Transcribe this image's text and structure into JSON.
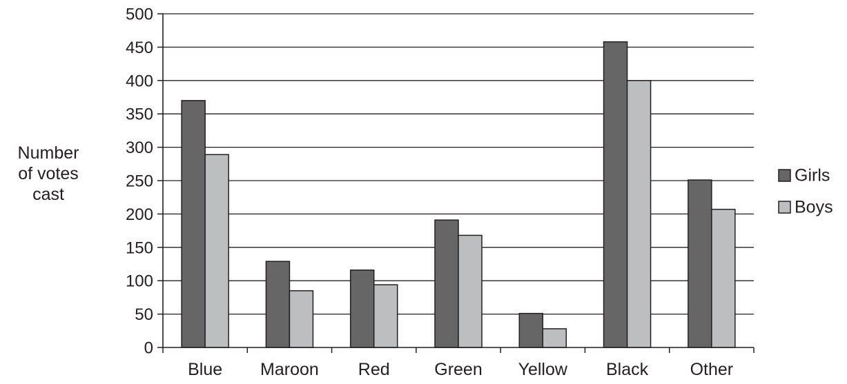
{
  "chart_data": {
    "type": "bar",
    "title": "",
    "xlabel": "",
    "ylabel_lines": [
      "Number",
      "of votes",
      "cast"
    ],
    "categories": [
      "Blue",
      "Maroon",
      "Red",
      "Green",
      "Yellow",
      "Black",
      "Other"
    ],
    "series": [
      {
        "name": "Girls",
        "values": [
          370,
          129,
          116,
          191,
          51,
          458,
          251
        ],
        "color": "#666666"
      },
      {
        "name": "Boys",
        "values": [
          289,
          85,
          94,
          168,
          28,
          400,
          207
        ],
        "color": "#bcbec0"
      }
    ],
    "ylim": [
      0,
      500
    ],
    "yticks": [
      0,
      50,
      100,
      150,
      200,
      250,
      300,
      350,
      400,
      450,
      500
    ],
    "grid": true,
    "legend_position": "right",
    "colors": {
      "axis": "#231f20",
      "grid": "#231f20",
      "bar_outline": "#231f20"
    }
  }
}
